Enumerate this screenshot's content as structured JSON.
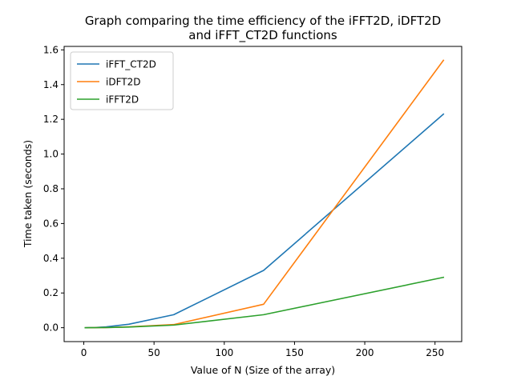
{
  "chart_data": {
    "type": "line",
    "title_lines": [
      "Graph comparing the time efficiency of the iFFT2D, iDFT2D",
      "and iFFT_CT2D functions"
    ],
    "xlabel": "Value of N (Size of the array)",
    "ylabel": "Time taken (seconds)",
    "xlim": [
      -14,
      269
    ],
    "ylim": [
      -0.08,
      1.62
    ],
    "xticks": [
      0,
      50,
      100,
      150,
      200,
      250
    ],
    "yticks": [
      0.0,
      0.2,
      0.4,
      0.6,
      0.8,
      1.0,
      1.2,
      1.4,
      1.6
    ],
    "xtick_labels": [
      "0",
      "50",
      "100",
      "150",
      "200",
      "250"
    ],
    "ytick_labels": [
      "0.0",
      "0.2",
      "0.4",
      "0.6",
      "0.8",
      "1.0",
      "1.2",
      "1.4",
      "1.6"
    ],
    "grid": false,
    "legend_position": "upper-left",
    "x": [
      1,
      2,
      4,
      8,
      16,
      32,
      64,
      128,
      256
    ],
    "series": [
      {
        "name": "iFFT_CT2D",
        "color": "#1f77b4",
        "values": [
          0.0,
          0.0001,
          0.0003,
          0.001,
          0.005,
          0.02,
          0.075,
          0.33,
          1.23
        ]
      },
      {
        "name": "iDFT2D",
        "color": "#ff7f0e",
        "values": [
          0.0,
          0.0,
          0.0,
          0.0001,
          0.0008,
          0.005,
          0.018,
          0.135,
          1.54
        ]
      },
      {
        "name": "iFFT2D",
        "color": "#2ca02c",
        "values": [
          0.0,
          0.0,
          0.0001,
          0.0003,
          0.001,
          0.004,
          0.015,
          0.075,
          0.29
        ]
      }
    ]
  }
}
